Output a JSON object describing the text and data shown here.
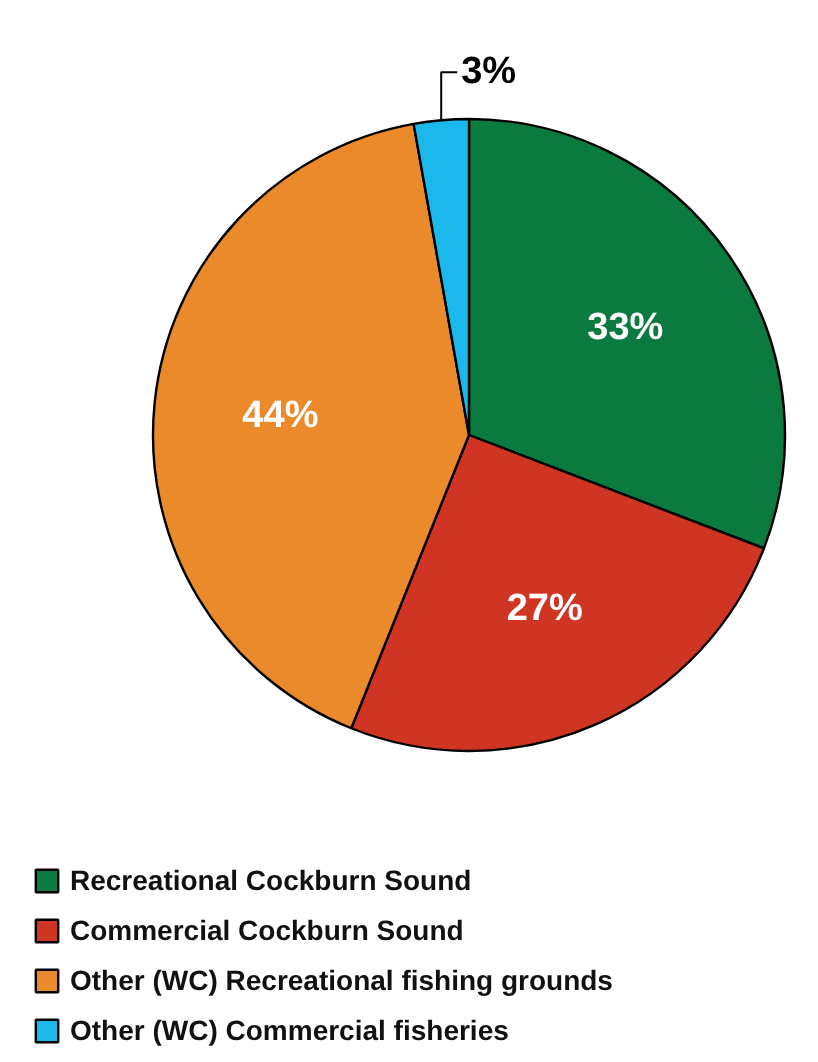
{
  "chart_data": {
    "type": "pie",
    "categories": [
      "Recreational Cockburn Sound",
      "Commercial Cockburn Sound",
      "Other (WC) Recreational fishing grounds",
      "Other (WC) Commercial fisheries"
    ],
    "values": [
      33,
      27,
      44,
      3
    ],
    "colors": [
      "#0b7a3e",
      "#d03422",
      "#ea8a2a",
      "#1bb8ec"
    ],
    "value_labels": [
      "33%",
      "27%",
      "44%",
      "3%"
    ],
    "legend": "bottom"
  }
}
